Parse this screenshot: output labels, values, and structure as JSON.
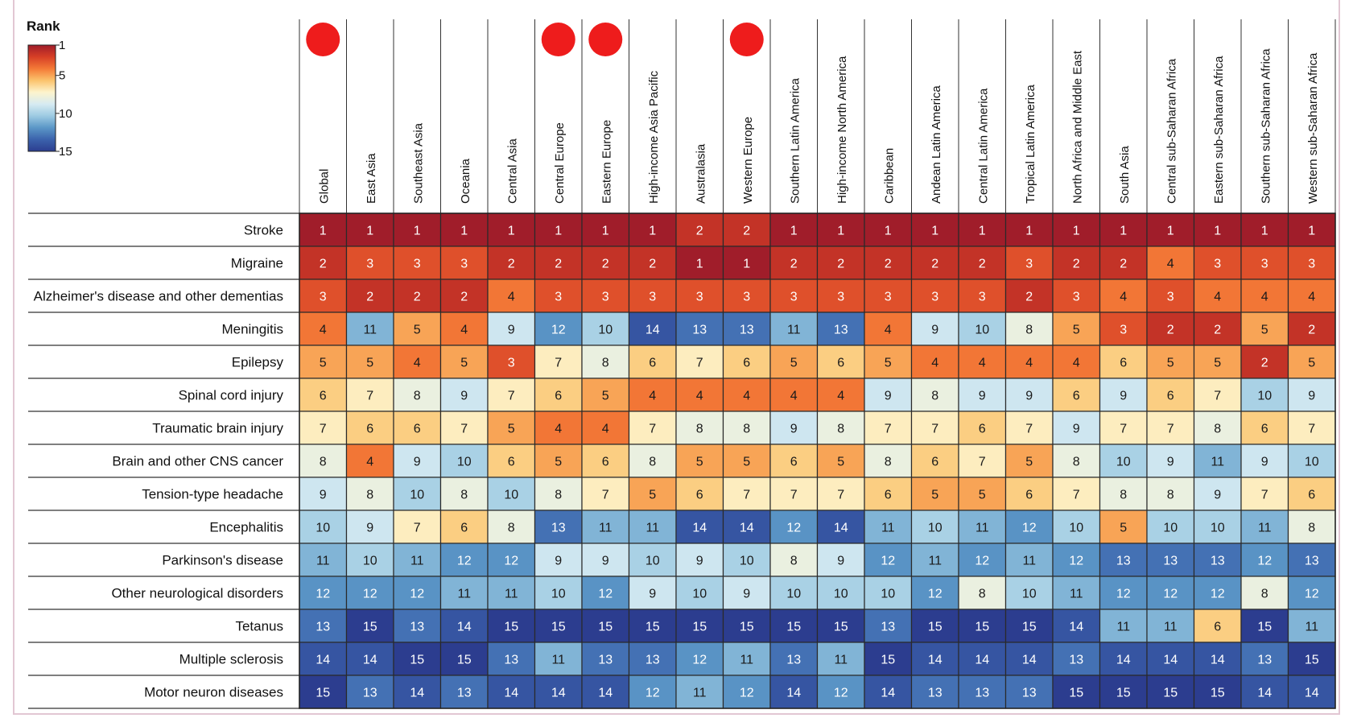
{
  "chart_data": {
    "type": "heatmap",
    "title": "",
    "legend": {
      "title": "Rank",
      "ticks": [
        1,
        5,
        10,
        15
      ],
      "range": [
        1,
        15
      ],
      "colors": [
        "#a01d2a",
        "#d73f26",
        "#f47a37",
        "#fbc36d",
        "#fdf4cd",
        "#d6ebf2",
        "#9dcae2",
        "#5b97c7",
        "#3b62ac",
        "#2c3d8f"
      ]
    },
    "columns": [
      "Global",
      "East Asia",
      "Southeast Asia",
      "Oceania",
      "Central Asia",
      "Central Europe",
      "Eastern Europe",
      "High-income Asia Pacific",
      "Australasia",
      "Western Europe",
      "Southern Latin America",
      "High-income North America",
      "Caribbean",
      "Andean Latin America",
      "Central Latin America",
      "Tropical Latin America",
      "North Africa and Middle East",
      "South Asia",
      "Central sub-Saharan Africa",
      "Eastern sub-Saharan Africa",
      "Southern sub-Saharan Africa",
      "Western sub-Saharan Africa"
    ],
    "marked_columns": [
      "Global",
      "Central Europe",
      "Eastern Europe",
      "Western Europe"
    ],
    "marker_color": "#ee1c1c",
    "rows": [
      "Stroke",
      "Migraine",
      "Alzheimer's disease and other dementias",
      "Meningitis",
      "Epilepsy",
      "Spinal cord injury",
      "Traumatic brain injury",
      "Brain and other CNS cancer",
      "Tension-type headache",
      "Encephalitis",
      "Parkinson's disease",
      "Other neurological disorders",
      "Tetanus",
      "Multiple sclerosis",
      "Motor neuron diseases"
    ],
    "values": [
      [
        1,
        1,
        1,
        1,
        1,
        1,
        1,
        1,
        2,
        2,
        1,
        1,
        1,
        1,
        1,
        1,
        1,
        1,
        1,
        1,
        1,
        1
      ],
      [
        2,
        3,
        3,
        3,
        2,
        2,
        2,
        2,
        1,
        1,
        2,
        2,
        2,
        2,
        2,
        3,
        2,
        2,
        4,
        3,
        3,
        3
      ],
      [
        3,
        2,
        2,
        2,
        4,
        3,
        3,
        3,
        3,
        3,
        3,
        3,
        3,
        3,
        3,
        2,
        3,
        4,
        3,
        4,
        4,
        4
      ],
      [
        4,
        11,
        5,
        4,
        9,
        12,
        10,
        14,
        13,
        13,
        11,
        13,
        4,
        9,
        10,
        8,
        5,
        3,
        2,
        2,
        5,
        2
      ],
      [
        5,
        5,
        4,
        5,
        3,
        7,
        8,
        6,
        7,
        6,
        5,
        6,
        5,
        4,
        4,
        4,
        4,
        6,
        5,
        5,
        2,
        5
      ],
      [
        6,
        7,
        8,
        9,
        7,
        6,
        5,
        4,
        4,
        4,
        4,
        4,
        9,
        8,
        9,
        9,
        6,
        9,
        6,
        7,
        10,
        9
      ],
      [
        7,
        6,
        6,
        7,
        5,
        4,
        4,
        7,
        8,
        8,
        9,
        8,
        7,
        7,
        6,
        7,
        9,
        7,
        7,
        8,
        6,
        7
      ],
      [
        8,
        4,
        9,
        10,
        6,
        5,
        6,
        8,
        5,
        5,
        6,
        5,
        8,
        6,
        7,
        5,
        8,
        10,
        9,
        11,
        9,
        10
      ],
      [
        9,
        8,
        10,
        8,
        10,
        8,
        7,
        5,
        6,
        7,
        7,
        7,
        6,
        5,
        5,
        6,
        7,
        8,
        8,
        9,
        7,
        6
      ],
      [
        10,
        9,
        7,
        6,
        8,
        13,
        11,
        11,
        14,
        14,
        12,
        14,
        11,
        10,
        11,
        12,
        10,
        5,
        10,
        10,
        11,
        8
      ],
      [
        11,
        10,
        11,
        12,
        12,
        9,
        9,
        10,
        9,
        10,
        8,
        9,
        12,
        11,
        12,
        11,
        12,
        13,
        13,
        13,
        12,
        13
      ],
      [
        12,
        12,
        12,
        11,
        11,
        10,
        12,
        9,
        10,
        9,
        10,
        10,
        10,
        12,
        8,
        10,
        11,
        12,
        12,
        12,
        8,
        12
      ],
      [
        13,
        15,
        13,
        14,
        15,
        15,
        15,
        15,
        15,
        15,
        15,
        15,
        13,
        15,
        15,
        15,
        14,
        11,
        11,
        6,
        15,
        11
      ],
      [
        14,
        14,
        15,
        15,
        13,
        11,
        13,
        13,
        12,
        11,
        13,
        11,
        15,
        14,
        14,
        14,
        13,
        14,
        14,
        14,
        13,
        15
      ],
      [
        15,
        13,
        14,
        13,
        14,
        14,
        14,
        12,
        11,
        12,
        14,
        12,
        14,
        13,
        13,
        13,
        15,
        15,
        15,
        15,
        14,
        14
      ]
    ]
  }
}
